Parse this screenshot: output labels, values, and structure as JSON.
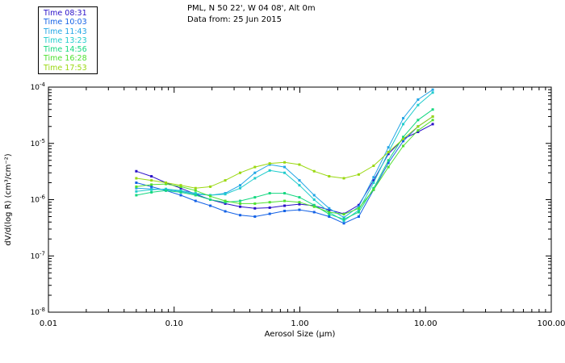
{
  "header": {
    "line1": "PML, N 50 22', W 04 08', Alt 0m",
    "line2": "Data from: 25 Jun 2015"
  },
  "chart_data": {
    "type": "line",
    "xscale": "log",
    "yscale": "log",
    "xlim": [
      0.01,
      100
    ],
    "ylim": [
      1e-08,
      0.0001
    ],
    "xlabel": "Aerosol Size (µm)",
    "ylabel": "dV/d(log R) (cm³/cm⁻²)",
    "x_ticks": [
      {
        "v": 0.01,
        "label": "0.01"
      },
      {
        "v": 0.1,
        "label": "0.10"
      },
      {
        "v": 1,
        "label": "1.00"
      },
      {
        "v": 10,
        "label": "10.00"
      },
      {
        "v": 100,
        "label": "100.00"
      }
    ],
    "y_ticks": [
      {
        "v": 1e-08,
        "base": "10",
        "exp": "-8"
      },
      {
        "v": 1e-07,
        "base": "10",
        "exp": "-7"
      },
      {
        "v": 1e-06,
        "base": "10",
        "exp": "-6"
      },
      {
        "v": 1e-05,
        "base": "10",
        "exp": "-5"
      },
      {
        "v": 0.0001,
        "base": "10",
        "exp": "-4"
      }
    ],
    "x": [
      0.05,
      0.066,
      0.086,
      0.113,
      0.148,
      0.194,
      0.255,
      0.335,
      0.439,
      0.576,
      0.756,
      0.992,
      1.3,
      1.71,
      2.24,
      2.94,
      3.86,
      5.06,
      6.64,
      8.71,
      11.4
    ],
    "series": [
      {
        "name": "Time 08:31",
        "color": "#2a10c8",
        "values": [
          3.2e-06,
          2.6e-06,
          2e-06,
          1.6e-06,
          1.25e-06,
          1e-06,
          8.5e-07,
          7.5e-07,
          7e-07,
          7.2e-07,
          7.8e-07,
          8.3e-07,
          7.8e-07,
          6.6e-07,
          5.6e-07,
          8e-07,
          2.2e-06,
          6.5e-06,
          1.2e-05,
          1.6e-05,
          2.2e-05
        ]
      },
      {
        "name": "Time 10:03",
        "color": "#1462e6",
        "values": [
          2e-06,
          1.7e-06,
          1.45e-06,
          1.2e-06,
          9.5e-07,
          7.8e-07,
          6.2e-07,
          5.3e-07,
          5e-07,
          5.6e-07,
          6.3e-07,
          6.6e-07,
          6e-07,
          5e-07,
          3.8e-07,
          5e-07,
          1.5e-06,
          4.5e-06,
          1.1e-05,
          2e-05,
          3e-05
        ]
      },
      {
        "name": "Time 11:43",
        "color": "#22a6e6",
        "values": [
          1.6e-06,
          1.55e-06,
          1.5e-06,
          1.4e-06,
          1.25e-06,
          1.2e-06,
          1.3e-06,
          1.8e-06,
          3e-06,
          4.2e-06,
          3.8e-06,
          2.2e-06,
          1.2e-06,
          7e-07,
          4.8e-07,
          7.5e-07,
          2.5e-06,
          8.5e-06,
          2.8e-05,
          6e-05,
          9e-05
        ]
      },
      {
        "name": "Time 13:23",
        "color": "#20cccc",
        "values": [
          1.4e-06,
          1.5e-06,
          1.55e-06,
          1.45e-06,
          1.3e-06,
          1.2e-06,
          1.25e-06,
          1.6e-06,
          2.4e-06,
          3.3e-06,
          3e-06,
          1.8e-06,
          1e-06,
          6e-07,
          4.2e-07,
          6.5e-07,
          2e-06,
          7e-06,
          2.2e-05,
          4.8e-05,
          8e-05
        ]
      },
      {
        "name": "Time 14:56",
        "color": "#14d880",
        "values": [
          1.2e-06,
          1.35e-06,
          1.45e-06,
          1.35e-06,
          1.2e-06,
          1e-06,
          9e-07,
          9.5e-07,
          1.1e-06,
          1.3e-06,
          1.3e-06,
          1.1e-06,
          8e-07,
          5.5e-07,
          4.5e-07,
          6e-07,
          1.6e-06,
          5e-06,
          1.3e-05,
          2.6e-05,
          4e-05
        ]
      },
      {
        "name": "Time 16:28",
        "color": "#50e030",
        "values": [
          1.7e-06,
          1.85e-06,
          1.9e-06,
          1.7e-06,
          1.45e-06,
          1.15e-06,
          9.5e-07,
          8.5e-07,
          8.5e-07,
          9e-07,
          9.5e-07,
          9e-07,
          7.5e-07,
          6e-07,
          5.5e-07,
          7e-07,
          1.5e-06,
          3.8e-06,
          9e-06,
          1.7e-05,
          2.6e-05
        ]
      },
      {
        "name": "Time 17:53",
        "color": "#9ad810",
        "values": [
          2.4e-06,
          2.2e-06,
          2e-06,
          1.8e-06,
          1.6e-06,
          1.7e-06,
          2.2e-06,
          3e-06,
          3.8e-06,
          4.4e-06,
          4.6e-06,
          4.2e-06,
          3.2e-06,
          2.6e-06,
          2.4e-06,
          2.8e-06,
          4e-06,
          7e-06,
          1.2e-05,
          2e-05,
          3e-05
        ]
      }
    ]
  }
}
